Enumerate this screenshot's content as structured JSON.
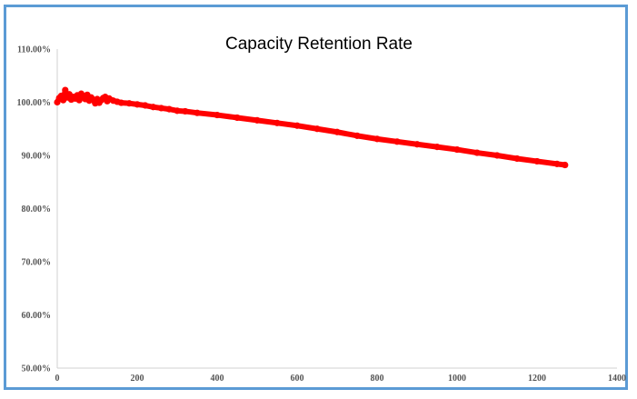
{
  "chart_data": {
    "type": "scatter",
    "title": "Capacity Retention Rate",
    "xlabel": "",
    "ylabel": "",
    "xlim": [
      0,
      1400
    ],
    "ylim": [
      50,
      110
    ],
    "x_ticks": [
      0,
      200,
      400,
      600,
      800,
      1000,
      1200,
      1400
    ],
    "y_ticks": [
      50,
      60,
      70,
      80,
      90,
      100,
      110
    ],
    "y_tick_labels": [
      "50.00%",
      "60.00%",
      "70.00%",
      "80.00%",
      "90.00%",
      "100.00%",
      "110.00%"
    ],
    "grid": false,
    "legend": "none",
    "marker_color": "#ff0000",
    "series": [
      {
        "x": [
          0,
          5,
          10,
          15,
          20,
          25,
          30,
          35,
          40,
          45,
          50,
          55,
          60,
          65,
          70,
          75,
          80,
          85,
          90,
          95,
          100,
          105,
          110,
          115,
          120,
          125,
          130,
          140,
          150,
          160,
          180,
          200,
          220,
          240,
          260,
          280,
          300,
          320,
          350,
          400,
          450,
          500,
          550,
          600,
          650,
          700,
          750,
          800,
          850,
          900,
          950,
          1000,
          1050,
          1100,
          1150,
          1200,
          1250,
          1270
        ],
        "y": [
          100.0,
          100.8,
          101.2,
          100.4,
          102.3,
          100.9,
          101.5,
          100.5,
          101.0,
          100.7,
          101.3,
          100.4,
          101.6,
          101.1,
          100.6,
          101.4,
          100.3,
          100.9,
          100.5,
          99.8,
          100.6,
          99.9,
          100.4,
          100.8,
          101.0,
          100.2,
          100.7,
          100.3,
          100.1,
          99.9,
          99.8,
          99.6,
          99.4,
          99.1,
          98.9,
          98.7,
          98.4,
          98.3,
          98.0,
          97.6,
          97.1,
          96.6,
          96.1,
          95.6,
          95.0,
          94.4,
          93.7,
          93.1,
          92.6,
          92.1,
          91.6,
          91.1,
          90.5,
          90.0,
          89.4,
          88.9,
          88.4,
          88.2
        ]
      }
    ]
  }
}
